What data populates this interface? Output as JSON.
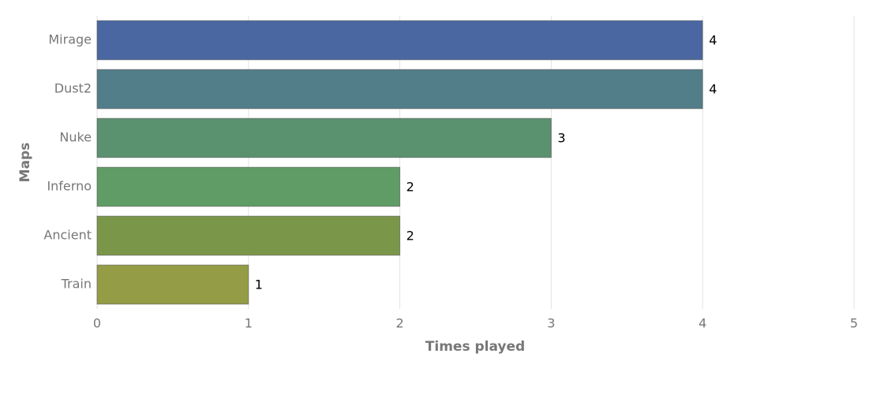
{
  "chart_data": {
    "type": "bar",
    "orientation": "horizontal",
    "x_label": "Times played",
    "y_label": "Maps",
    "categories": [
      "Mirage",
      "Dust2",
      "Nuke",
      "Inferno",
      "Ancient",
      "Train"
    ],
    "values": [
      4,
      4,
      3,
      2,
      2,
      1
    ],
    "colors": [
      "#4a67a1",
      "#517e88",
      "#5a916f",
      "#5f9c66",
      "#7a9749",
      "#949c45"
    ],
    "xlim": [
      0,
      5
    ],
    "xticks": [
      0,
      1,
      2,
      3,
      4,
      5
    ],
    "grid": true
  }
}
